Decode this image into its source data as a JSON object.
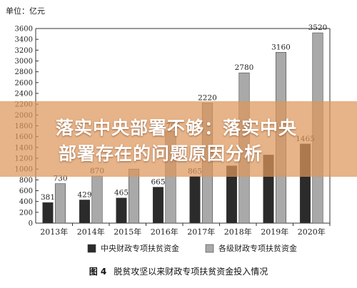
{
  "chart_data": {
    "type": "bar",
    "unit_label": "单位：亿元",
    "categories": [
      "2013年",
      "2014年",
      "2015年",
      "2016年",
      "2017年",
      "2018年",
      "2019年",
      "2020年"
    ],
    "series": [
      {
        "name": "中央财政专项扶贫资金",
        "color": "#2b2b2b",
        "values": [
          381,
          429,
          465,
          665,
          865,
          1060,
          1261,
          1465
        ]
      },
      {
        "name": "各级财政专项扶贫资金",
        "color": "#a9a9a9",
        "values": [
          730,
          870,
          1000,
          1700,
          2220,
          2780,
          3160,
          3520
        ]
      }
    ],
    "data_labels": [
      [
        "381",
        "429",
        "465",
        "665",
        "865",
        "",
        "",
        "1465"
      ],
      [
        "730",
        "870",
        "",
        "1700",
        "2220",
        "2780",
        "3160",
        "3520"
      ]
    ],
    "ylim": [
      0,
      3600
    ],
    "yticks": [
      0,
      200,
      400,
      600,
      800,
      1000,
      1200,
      1400,
      1600,
      1800,
      2000,
      2200,
      2400,
      2600,
      2800,
      3000,
      3200,
      3400,
      3600
    ],
    "grid": false,
    "legend_position": "bottom"
  },
  "caption": {
    "figure_number": "图 4",
    "text": "脱贫攻坚以来财政专项扶贫资金投入情况"
  },
  "banner": {
    "line1": "落实中央部署不够：落实中央",
    "line2": "部署存在的问题原因分析"
  }
}
